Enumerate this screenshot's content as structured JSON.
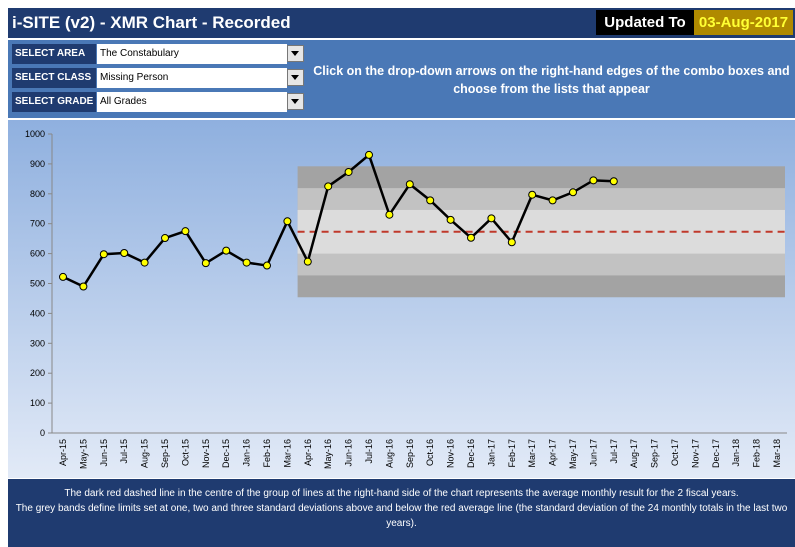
{
  "header": {
    "title": "i-SITE (v2) - XMR Chart - Recorded",
    "updated_label": "Updated To",
    "updated_date": "03-Aug-2017"
  },
  "selectors": [
    {
      "label": "SELECT AREA",
      "value": "The Constabulary"
    },
    {
      "label": "SELECT CLASS",
      "value": "Missing Person"
    },
    {
      "label": "SELECT GRADE",
      "value": "All Grades"
    }
  ],
  "instructions": "Click on the drop-down arrows on the right-hand edges of the combo boxes and choose from the lists that appear",
  "footer": [
    "The dark red dashed line in the centre of the group of lines at the right-hand side of the chart represents the average monthly result for the 2 fiscal years.",
    "The grey bands define limits set at one, two and three standard deviations above and below the red average line (the standard deviation of the 24 monthly totals in the last two years)."
  ],
  "chart_data": {
    "type": "line",
    "categories": [
      "Apr-15",
      "May-15",
      "Jun-15",
      "Jul-15",
      "Aug-15",
      "Sep-15",
      "Oct-15",
      "Nov-15",
      "Dec-15",
      "Jan-16",
      "Feb-16",
      "Mar-16",
      "Apr-16",
      "May-16",
      "Jun-16",
      "Jul-16",
      "Aug-16",
      "Sep-16",
      "Oct-16",
      "Nov-16",
      "Dec-16",
      "Jan-17",
      "Feb-17",
      "Mar-17",
      "Apr-17",
      "May-17",
      "Jun-17",
      "Jul-17",
      "Aug-17",
      "Sep-17",
      "Oct-17",
      "Nov-17",
      "Dec-17",
      "Jan-18",
      "Feb-18",
      "Mar-18"
    ],
    "values": [
      522,
      490,
      598,
      602,
      570,
      652,
      675,
      568,
      610,
      570,
      560,
      708,
      573,
      825,
      873,
      930,
      730,
      832,
      778,
      713,
      653,
      718,
      638,
      797,
      778,
      805,
      845,
      842,
      null,
      null,
      null,
      null,
      null,
      null,
      null,
      null
    ],
    "color": "#000000",
    "marker_color": "#ffff00",
    "ylim": [
      0,
      1000
    ],
    "yticks": [
      0,
      100,
      200,
      300,
      400,
      500,
      600,
      700,
      800,
      900,
      1000
    ],
    "limits": {
      "from": "Apr-16",
      "average": 673,
      "average_color": "#c0392b",
      "bands": [
        {
          "lower": 454,
          "upper": 892,
          "color": "#a3a3a3"
        },
        {
          "lower": 527,
          "upper": 819,
          "color": "#c2c2c2"
        },
        {
          "lower": 600,
          "upper": 746,
          "color": "#dcdcdc"
        }
      ]
    }
  }
}
